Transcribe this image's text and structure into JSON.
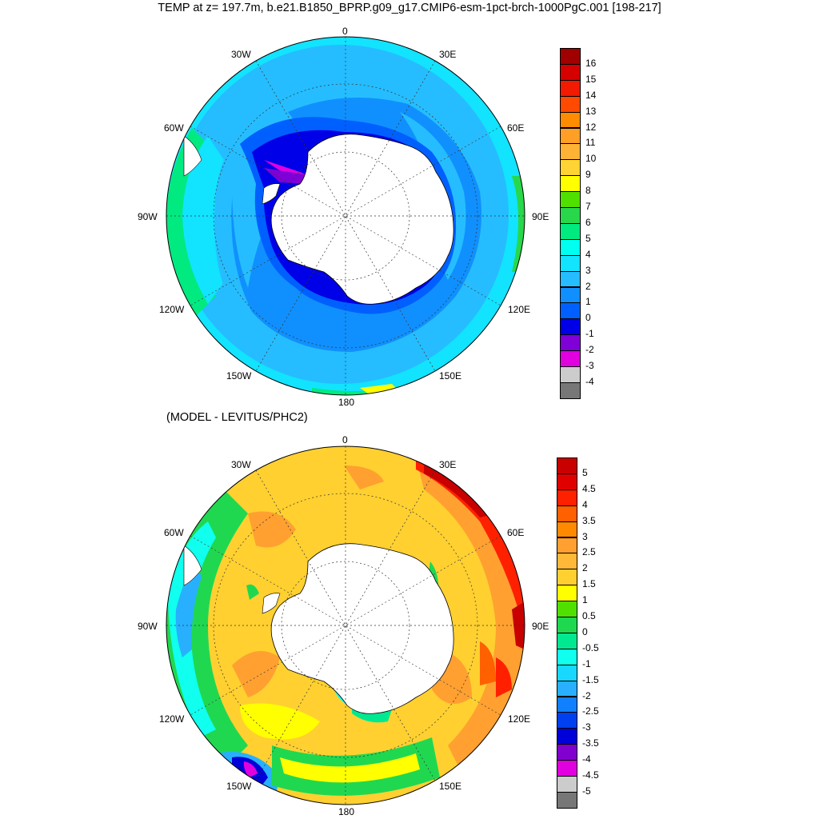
{
  "top_panel": {
    "title": "TEMP at z= 197.7m, b.e21.B1850_BPRP.g09_g17.CMIP6-esm-1pct-brch-1000PgC.001 [198-217]",
    "lon_labels": [
      "0",
      "30E",
      "60E",
      "90E",
      "120E",
      "150E",
      "180",
      "150W",
      "120W",
      "90W",
      "60W",
      "30W"
    ],
    "colorbar": {
      "labels": [
        "16",
        "15",
        "14",
        "13",
        "12",
        "11",
        "10",
        "9",
        "8",
        "7",
        "6",
        "5",
        "4",
        "3",
        "2",
        "1",
        "0",
        "-1",
        "-2",
        "-3",
        "-4"
      ],
      "colors": [
        "#a00000",
        "#d50000",
        "#f21a00",
        "#ff4a00",
        "#ff8b00",
        "#ff9f26",
        "#ffb336",
        "#ffd334",
        "#ffff00",
        "#4fe000",
        "#28d84a",
        "#00ea80",
        "#00fff0",
        "#12e3ff",
        "#25bdff",
        "#1090ff",
        "#0060ff",
        "#0000e8",
        "#8000d8",
        "#e000e0",
        "#cccccc",
        "#777777"
      ]
    }
  },
  "bottom_panel": {
    "title": "(MODEL - LEVITUS/PHC2)",
    "lon_labels": [
      "0",
      "30E",
      "60E",
      "90E",
      "120E",
      "150E",
      "180",
      "150W",
      "120W",
      "90W",
      "60W",
      "30W"
    ],
    "colorbar": {
      "labels": [
        "5",
        "4.5",
        "4",
        "3.5",
        "3",
        "2.5",
        "2",
        "1.5",
        "1",
        "0.5",
        "0",
        "-0.5",
        "-1",
        "-1.5",
        "-2",
        "-2.5",
        "-3",
        "-3.5",
        "-4",
        "-4.5",
        "-5"
      ],
      "colors": [
        "#c80000",
        "#e00000",
        "#ff2000",
        "#ff6000",
        "#ff8a00",
        "#ffa030",
        "#ffb838",
        "#ffd030",
        "#ffff00",
        "#50e000",
        "#20d850",
        "#00e890",
        "#10ffee",
        "#18d8ff",
        "#28b0ff",
        "#1080ff",
        "#0040f0",
        "#0000d8",
        "#8000d0",
        "#e000e0",
        "#cccccc",
        "#777777"
      ]
    }
  }
}
